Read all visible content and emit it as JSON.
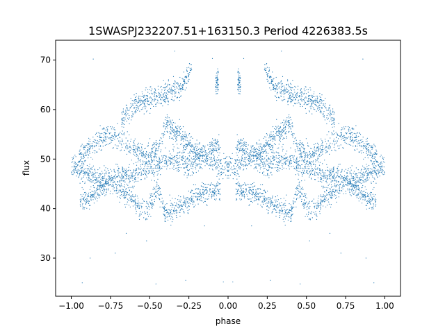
{
  "chart_data": {
    "type": "scatter",
    "title": "1SWASPJ232207.51+163150.3 Period 4226383.5s",
    "xlabel": "phase",
    "ylabel": "flux",
    "xlim": [
      -1.1,
      1.1
    ],
    "ylim": [
      22.3,
      74.0
    ],
    "x_ticks": [
      -1.0,
      -0.75,
      -0.5,
      -0.25,
      0.0,
      0.25,
      0.5,
      0.75,
      1.0
    ],
    "x_tick_labels": [
      "−1.00",
      "−0.75",
      "−0.50",
      "−0.25",
      "0.00",
      "0.25",
      "0.50",
      "0.75",
      "1.00"
    ],
    "y_ticks": [
      30,
      40,
      50,
      60,
      70
    ],
    "y_tick_labels": [
      "30",
      "40",
      "50",
      "60",
      "70"
    ],
    "grid": false,
    "marker_color": "#1f77b4",
    "phase_symmetric": true,
    "trend_series": [
      {
        "x": [
          0.0,
          0.05,
          0.1,
          0.15,
          0.2,
          0.25,
          0.3,
          0.35,
          0.4,
          0.45,
          0.5,
          0.55,
          0.6,
          0.65,
          0.7,
          0.75,
          0.8,
          0.85,
          0.9,
          0.95,
          1.0
        ],
        "y": [
          48.5,
          48.3,
          49.5,
          50.0,
          49.3,
          48.6,
          49.5,
          50.0,
          49.5,
          48.8,
          48.2,
          47.6,
          46.8,
          46.5,
          47.0,
          46.3,
          46.0,
          46.8,
          47.5,
          48.0,
          48.5
        ]
      },
      {
        "x": [
          0.05,
          0.1,
          0.15,
          0.2,
          0.25,
          0.3,
          0.35,
          0.4,
          0.45,
          0.5,
          0.55,
          0.6,
          0.65,
          0.7,
          0.75,
          0.8,
          0.85,
          0.9,
          0.95
        ],
        "y": [
          52.5,
          52.0,
          51.5,
          51.0,
          53.0,
          54.5,
          56.0,
          57.5,
          51.5,
          51.0,
          51.2,
          52.0,
          53.0,
          54.0,
          55.0,
          54.5,
          53.0,
          52.0,
          50.5
        ]
      },
      {
        "x": [
          0.05,
          0.1,
          0.15,
          0.2,
          0.25,
          0.3,
          0.35,
          0.4,
          0.45,
          0.5,
          0.55,
          0.6,
          0.65,
          0.7,
          0.75,
          0.8,
          0.85,
          0.9,
          0.95
        ],
        "y": [
          44.0,
          43.5,
          43.0,
          42.5,
          41.5,
          40.5,
          39.8,
          39.0,
          44.5,
          40.2,
          39.5,
          42.0,
          43.0,
          44.0,
          45.5,
          44.5,
          43.0,
          42.0,
          41.5
        ]
      },
      {
        "x": [
          0.23,
          0.25,
          0.27,
          0.3,
          0.6,
          0.62,
          0.65,
          0.68
        ],
        "y": [
          68.5,
          67.5,
          66.0,
          64.5,
          61.0,
          60.0,
          59.0,
          58.0
        ]
      },
      {
        "x": [
          0.06,
          0.07,
          0.08
        ],
        "y": [
          66.0,
          65.5,
          65.0
        ]
      }
    ],
    "outliers": [
      {
        "x": 0.03,
        "y": 25.2
      },
      {
        "x": 0.27,
        "y": 25.5
      },
      {
        "x": 0.46,
        "y": 24.8
      },
      {
        "x": 0.93,
        "y": 25.0
      },
      {
        "x": 0.52,
        "y": 33.5
      },
      {
        "x": 0.72,
        "y": 31.0
      },
      {
        "x": 0.1,
        "y": 70.3
      },
      {
        "x": 0.86,
        "y": 70.2
      },
      {
        "x": 0.34,
        "y": 71.8
      },
      {
        "x": 0.15,
        "y": 36.5
      },
      {
        "x": 0.65,
        "y": 35.0
      },
      {
        "x": 0.88,
        "y": 30.0
      }
    ]
  }
}
